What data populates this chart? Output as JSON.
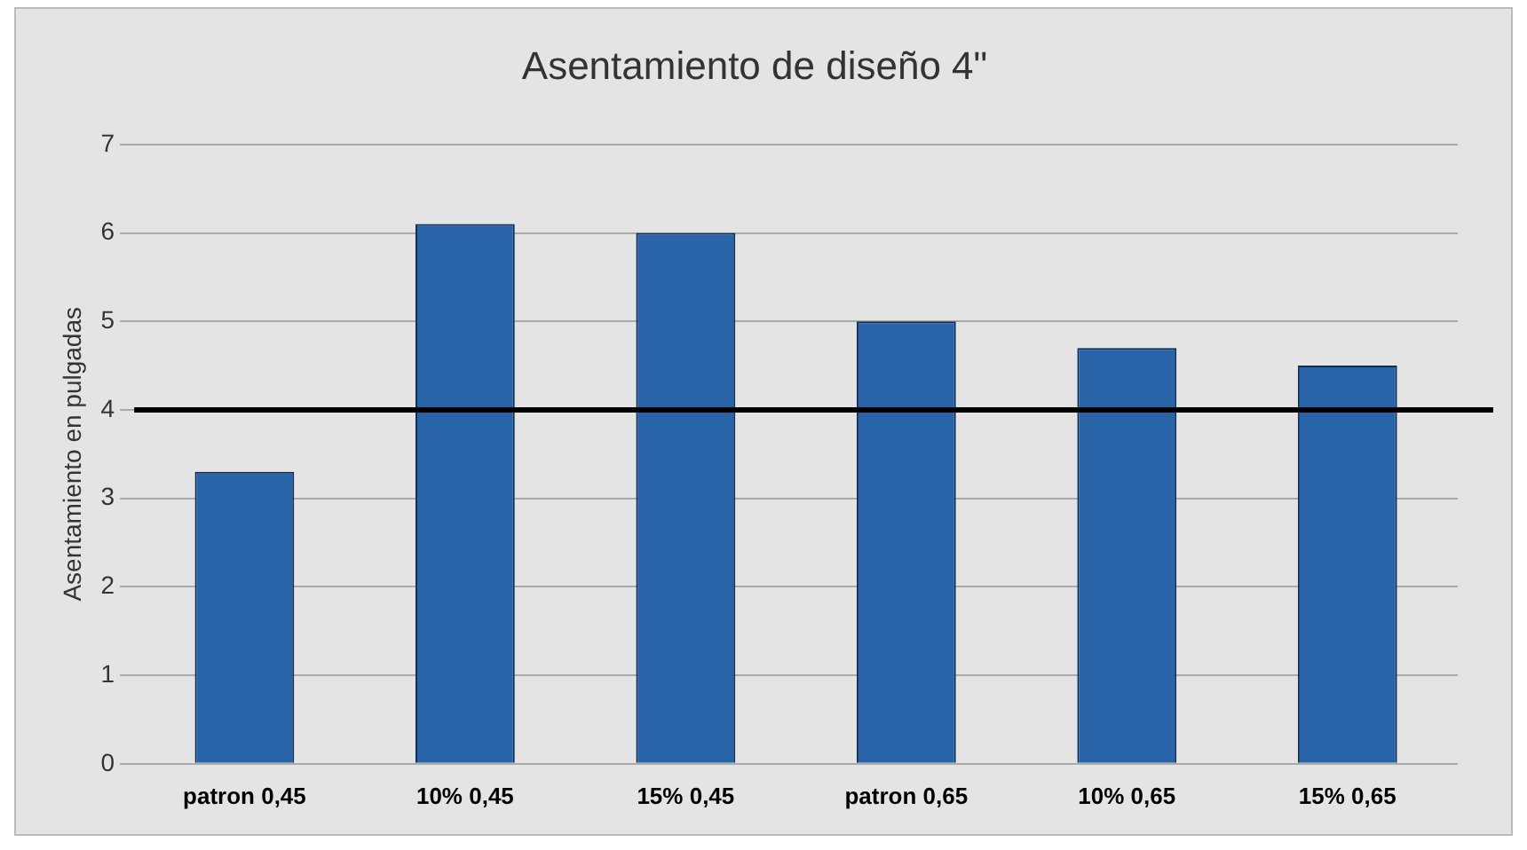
{
  "chart_data": {
    "type": "bar",
    "title": "Asentamiento de diseño 4\"",
    "ylabel": "Asentamiento en pulgadas",
    "categories": [
      "patron 0,45",
      "10% 0,45",
      "15% 0,45",
      "patron 0,65",
      "10% 0,65",
      "15% 0,65"
    ],
    "values": [
      3.3,
      6.1,
      6.0,
      5.0,
      4.7,
      4.5
    ],
    "color": "#2a64a8",
    "ylim": [
      0,
      7
    ],
    "yticks": [
      0,
      1,
      2,
      3,
      4,
      5,
      6,
      7
    ],
    "grid": "y",
    "ref_lines": [
      {
        "axis": "y",
        "value": 4,
        "color": "#000000"
      }
    ]
  }
}
